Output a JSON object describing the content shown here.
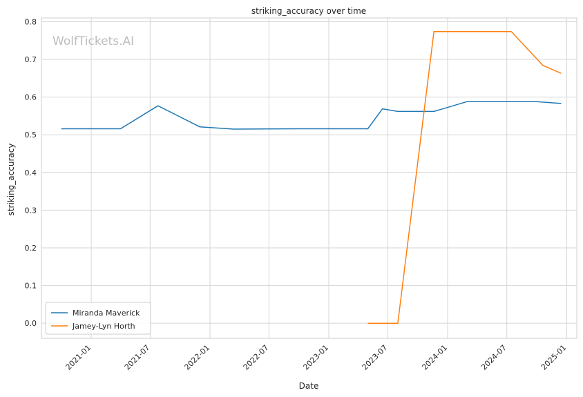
{
  "watermark": "WolfTickets.AI",
  "chart_data": {
    "type": "line",
    "title": "striking_accuracy over time",
    "xlabel": "Date",
    "ylabel": "striking_accuracy",
    "ylim": [
      -0.04,
      0.81
    ],
    "xlim": [
      "2020-08-01",
      "2025-02-01"
    ],
    "grid": true,
    "legend_position": "lower-left",
    "x_ticks": [
      "2021-01",
      "2021-07",
      "2022-01",
      "2022-07",
      "2023-01",
      "2023-07",
      "2024-01",
      "2024-07",
      "2025-01"
    ],
    "y_ticks": [
      "0.0",
      "0.1",
      "0.2",
      "0.3",
      "0.4",
      "0.5",
      "0.6",
      "0.7",
      "0.8"
    ],
    "series": [
      {
        "name": "Miranda Maverick",
        "color": "#1f77b4",
        "points": [
          {
            "x": "2020-10-01",
            "y": 0.516
          },
          {
            "x": "2021-04-01",
            "y": 0.516
          },
          {
            "x": "2021-07-25",
            "y": 0.577
          },
          {
            "x": "2021-12-01",
            "y": 0.521
          },
          {
            "x": "2022-03-15",
            "y": 0.515
          },
          {
            "x": "2022-10-01",
            "y": 0.516
          },
          {
            "x": "2023-05-01",
            "y": 0.516
          },
          {
            "x": "2023-06-15",
            "y": 0.569
          },
          {
            "x": "2023-08-01",
            "y": 0.562
          },
          {
            "x": "2023-11-20",
            "y": 0.562
          },
          {
            "x": "2024-03-01",
            "y": 0.588
          },
          {
            "x": "2024-10-01",
            "y": 0.588
          },
          {
            "x": "2024-12-15",
            "y": 0.583
          }
        ]
      },
      {
        "name": "Jamey-Lyn Horth",
        "color": "#ff7f0e",
        "points": [
          {
            "x": "2023-05-01",
            "y": 0.0
          },
          {
            "x": "2023-08-01",
            "y": 0.0
          },
          {
            "x": "2023-11-20",
            "y": 0.774
          },
          {
            "x": "2024-07-15",
            "y": 0.774
          },
          {
            "x": "2024-10-20",
            "y": 0.684
          },
          {
            "x": "2024-12-15",
            "y": 0.663
          }
        ]
      }
    ]
  }
}
